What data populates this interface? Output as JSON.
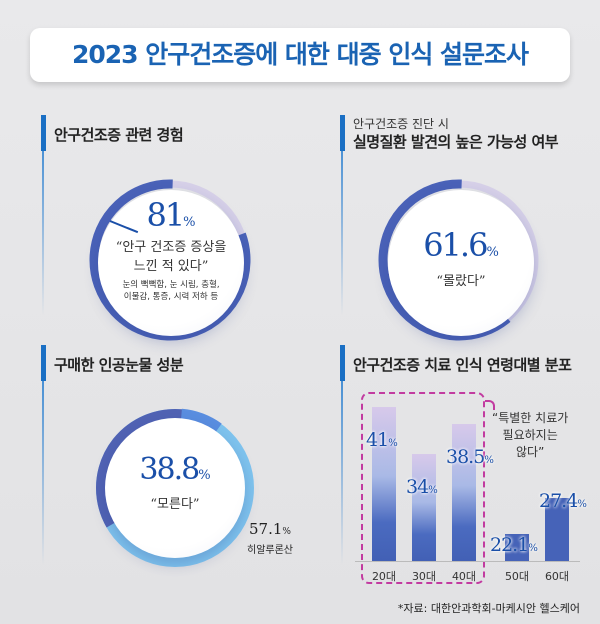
{
  "title": "2023 안구건조증에 대한 대중 인식 설문조사",
  "section1": {
    "heading": "안구건조증 관련 경험",
    "value": "81",
    "unit": "%",
    "quote": "“안구 건조증 증상을",
    "quote2": "느낀 적 있다”",
    "note1": "눈의 뻑뻑함, 눈 시림, 충혈,",
    "note2": "이물감, 통증, 시력 저하 등",
    "percent": 81
  },
  "section2": {
    "subheading": "안구건조증 진단 시",
    "heading": "실명질환 발견의 높은 가능성 여부",
    "value": "61.6",
    "unit": "%",
    "quote": "“몰랐다”",
    "percent": 61.6
  },
  "section3": {
    "heading": "구매한 인공눈물 성분",
    "value": "38.8",
    "unit": "%",
    "quote": "“모른다”",
    "value2": "57.1",
    "unit2": "%",
    "label2": "히알루론산"
  },
  "section4": {
    "heading": "안구건조증 치료 인식 연령대별 분포",
    "callout1": "“특별한 치료가",
    "callout2": "필요하지는",
    "callout3": "않다”",
    "unit": "%"
  },
  "chart_data": {
    "type": "bar",
    "categories": [
      "20대",
      "30대",
      "40대",
      "50대",
      "60대"
    ],
    "values": [
      41,
      34,
      38.5,
      22.1,
      27.4
    ],
    "labels": [
      "41",
      "34",
      "38.5",
      "22.1",
      "27.4"
    ],
    "highlighted": [
      "20대",
      "30대",
      "40대"
    ]
  },
  "source": "*자료: 대한안과학회-마케시안 헬스케어"
}
